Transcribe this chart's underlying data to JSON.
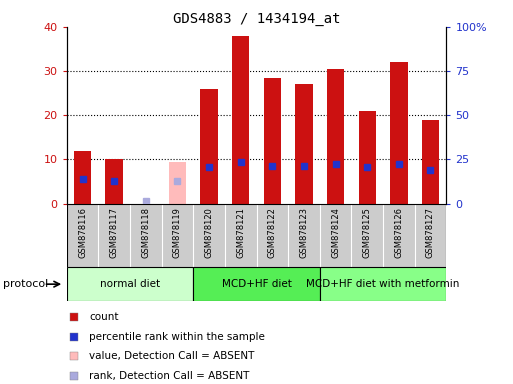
{
  "title": "GDS4883 / 1434194_at",
  "samples": [
    "GSM878116",
    "GSM878117",
    "GSM878118",
    "GSM878119",
    "GSM878120",
    "GSM878121",
    "GSM878122",
    "GSM878123",
    "GSM878124",
    "GSM878125",
    "GSM878126",
    "GSM878127"
  ],
  "count_values": [
    12,
    10,
    0,
    9.5,
    26,
    38,
    28.5,
    27,
    30.5,
    21,
    32,
    19
  ],
  "count_absent": [
    false,
    false,
    false,
    true,
    false,
    false,
    false,
    false,
    false,
    false,
    false,
    false
  ],
  "percentile_values": [
    14,
    12.5,
    1.5,
    12.5,
    20.5,
    23.5,
    21.5,
    21.5,
    22.5,
    20.5,
    22.5,
    19
  ],
  "percentile_absent": [
    false,
    false,
    true,
    true,
    false,
    false,
    false,
    false,
    false,
    false,
    false,
    false
  ],
  "ylim_left": [
    0,
    40
  ],
  "ylim_right": [
    0,
    100
  ],
  "yticks_left": [
    0,
    10,
    20,
    30,
    40
  ],
  "yticks_right": [
    0,
    25,
    50,
    75,
    100
  ],
  "ytick_labels_right": [
    "0",
    "25",
    "50",
    "75",
    "100%"
  ],
  "color_count": "#cc1111",
  "color_count_absent": "#ffbbbb",
  "color_percentile": "#2233cc",
  "color_percentile_absent": "#aaaadd",
  "protocol_groups": [
    {
      "label": "normal diet",
      "start": 0,
      "end": 3,
      "color": "#ccffcc"
    },
    {
      "label": "MCD+HF diet",
      "start": 4,
      "end": 7,
      "color": "#55ee55"
    },
    {
      "label": "MCD+HF diet with metformin",
      "start": 8,
      "end": 11,
      "color": "#88ff88"
    }
  ],
  "protocol_label": "protocol",
  "legend_items": [
    {
      "label": "count",
      "color": "#cc1111"
    },
    {
      "label": "percentile rank within the sample",
      "color": "#2233cc"
    },
    {
      "label": "value, Detection Call = ABSENT",
      "color": "#ffbbbb"
    },
    {
      "label": "rank, Detection Call = ABSENT",
      "color": "#aaaadd"
    }
  ],
  "bar_width": 0.55,
  "title_fontsize": 10,
  "tick_label_fontsize": 6,
  "legend_fontsize": 7.5,
  "protocol_fontsize": 7.5,
  "xtick_bg_color": "#cccccc",
  "plot_bg": "white",
  "grid_yticks": [
    10,
    20,
    30
  ]
}
